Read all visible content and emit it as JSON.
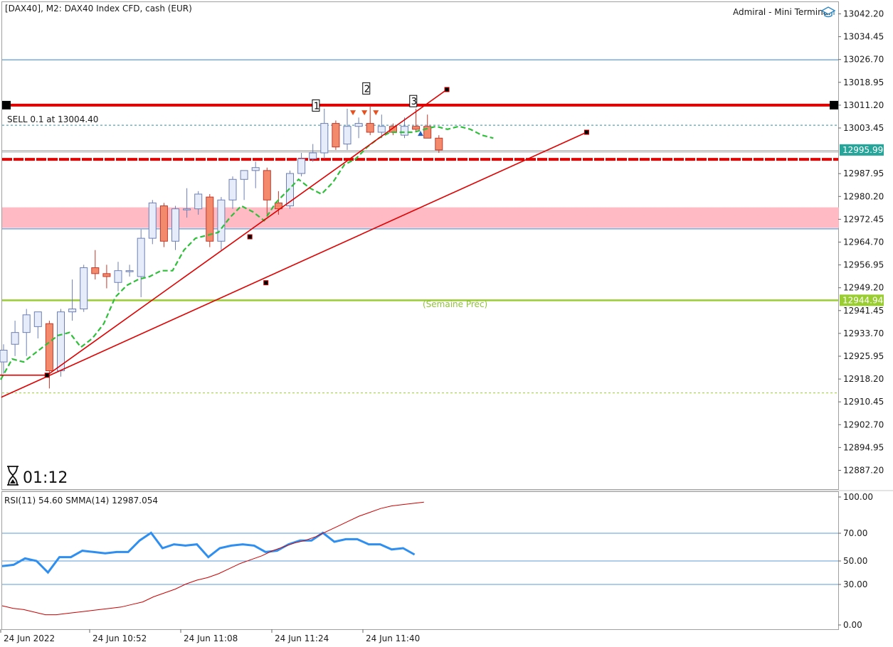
{
  "header": {
    "title": "[DAX40], M2:  DAX40 Index CFD, cash (EUR)",
    "brand": "Admiral - Mini Terminal",
    "brand_icon": "graduation-cap-icon"
  },
  "order_label": "SELL 0.1 at 13004.40",
  "timer": {
    "icon": "hourglass-icon",
    "value": "01:12"
  },
  "colors": {
    "bull_fill": "#e6ecfa",
    "bull_stroke": "#6d7fb3",
    "bear_fill": "#f48a6c",
    "bear_stroke": "#c0392b",
    "ma_green": "#2fbf3a",
    "trend_red": "#e00000",
    "rsi_blue": "#2e8ff0",
    "smma_red": "#cc0000",
    "weekly_green": "#9acd32",
    "price_tag": "#26a69a",
    "zone_pink": "#ffb6c1",
    "blue_line": "#5b9bd5"
  },
  "chart_data": [
    {
      "type": "candlestick",
      "symbol": "DAX40",
      "timeframe": "M2",
      "ylim": [
        12883.0,
        13046.0
      ],
      "y_ticks": [
        "13042.20",
        "13034.45",
        "13026.70",
        "13018.95",
        "13011.20",
        "13003.45",
        "12995.99",
        "12987.95",
        "12980.20",
        "12972.45",
        "12964.70",
        "12956.95",
        "12949.20",
        "12941.45",
        "12933.70",
        "12925.95",
        "12918.20",
        "12910.45",
        "12902.70",
        "12894.95",
        "12887.20"
      ],
      "x_ticks": [
        "24 Jun 2022",
        "24 Jun 10:52",
        "24 Jun 11:08",
        "24 Jun 11:24",
        "24 Jun 11:40"
      ],
      "current_price": "12995.99",
      "candles": [
        {
          "o": 12924.0,
          "h": 12930.0,
          "l": 12920.0,
          "c": 12928.0
        },
        {
          "o": 12930.0,
          "h": 12938.0,
          "l": 12926.0,
          "c": 12934.0
        },
        {
          "o": 12934.0,
          "h": 12942.0,
          "l": 12926.0,
          "c": 12940.0
        },
        {
          "o": 12936.0,
          "h": 12941.0,
          "l": 12932.0,
          "c": 12941.0
        },
        {
          "o": 12937.0,
          "h": 12938.0,
          "l": 12915.0,
          "c": 12921.0
        },
        {
          "o": 12921.0,
          "h": 12942.0,
          "l": 12919.0,
          "c": 12941.0
        },
        {
          "o": 12941.0,
          "h": 12952.0,
          "l": 12938.0,
          "c": 12942.0
        },
        {
          "o": 12942.0,
          "h": 12957.0,
          "l": 12941.0,
          "c": 12956.0
        },
        {
          "o": 12956.0,
          "h": 12962.0,
          "l": 12952.0,
          "c": 12954.0
        },
        {
          "o": 12954.0,
          "h": 12957.0,
          "l": 12949.0,
          "c": 12953.0
        },
        {
          "o": 12951.0,
          "h": 12958.0,
          "l": 12948.0,
          "c": 12955.0
        },
        {
          "o": 12955.0,
          "h": 12957.0,
          "l": 12953.0,
          "c": 12955.0
        },
        {
          "o": 12953.0,
          "h": 12969.0,
          "l": 12946.0,
          "c": 12966.0
        },
        {
          "o": 12966.0,
          "h": 12979.0,
          "l": 12964.0,
          "c": 12978.0
        },
        {
          "o": 12977.0,
          "h": 12978.0,
          "l": 12963.0,
          "c": 12965.0
        },
        {
          "o": 12965.0,
          "h": 12977.0,
          "l": 12962.0,
          "c": 12976.0
        },
        {
          "o": 12976.0,
          "h": 12983.0,
          "l": 12973.0,
          "c": 12976.0
        },
        {
          "o": 12976.0,
          "h": 12982.0,
          "l": 12974.0,
          "c": 12981.0
        },
        {
          "o": 12980.0,
          "h": 12981.0,
          "l": 12963.0,
          "c": 12965.0
        },
        {
          "o": 12965.0,
          "h": 12980.0,
          "l": 12962.0,
          "c": 12979.0
        },
        {
          "o": 12979.0,
          "h": 12987.0,
          "l": 12976.0,
          "c": 12986.0
        },
        {
          "o": 12986.0,
          "h": 12989.0,
          "l": 12979.0,
          "c": 12989.0
        },
        {
          "o": 12989.0,
          "h": 12992.0,
          "l": 12983.0,
          "c": 12990.0
        },
        {
          "o": 12989.0,
          "h": 12990.0,
          "l": 12974.0,
          "c": 12979.0
        },
        {
          "o": 12978.0,
          "h": 12982.0,
          "l": 12974.0,
          "c": 12976.0
        },
        {
          "o": 12977.0,
          "h": 12989.0,
          "l": 12976.0,
          "c": 12988.0
        },
        {
          "o": 12988.0,
          "h": 12995.0,
          "l": 12987.0,
          "c": 12993.0
        },
        {
          "o": 12993.0,
          "h": 12998.0,
          "l": 12992.0,
          "c": 12995.0
        },
        {
          "o": 12995.0,
          "h": 13010.0,
          "l": 12993.0,
          "c": 13005.0
        },
        {
          "o": 13005.0,
          "h": 13006.0,
          "l": 12996.0,
          "c": 12997.0
        },
        {
          "o": 12998.0,
          "h": 13010.0,
          "l": 12996.0,
          "c": 13004.0
        },
        {
          "o": 13004.0,
          "h": 13007.0,
          "l": 13000.0,
          "c": 13005.0
        },
        {
          "o": 13005.0,
          "h": 13011.0,
          "l": 13001.0,
          "c": 13002.0
        },
        {
          "o": 13002.0,
          "h": 13008.0,
          "l": 13000.0,
          "c": 13004.0
        },
        {
          "o": 13004.0,
          "h": 13005.0,
          "l": 13001.0,
          "c": 13002.0
        },
        {
          "o": 13001.0,
          "h": 13007.0,
          "l": 13000.0,
          "c": 13004.0
        },
        {
          "o": 13004.0,
          "h": 13010.0,
          "l": 13002.0,
          "c": 13003.0
        },
        {
          "o": 13004.0,
          "h": 13008.0,
          "l": 13000.0,
          "c": 13000.0
        },
        {
          "o": 13000.0,
          "h": 13001.0,
          "l": 12995.0,
          "c": 12996.0
        }
      ],
      "ma_values": [
        12918,
        12925,
        12924,
        12927,
        12930,
        12933,
        12934,
        12929,
        12932,
        12937,
        12946,
        12950,
        12952,
        12953,
        12955,
        12955,
        12962,
        12966,
        12967,
        12968,
        12973,
        12977,
        12975,
        12972,
        12978,
        12982,
        12986,
        12983,
        12981,
        12985,
        12991,
        12993,
        12997,
        13000,
        13002,
        13002,
        13002,
        13003,
        13004,
        13003,
        13004,
        13003,
        13001,
        13000
      ],
      "horizontal_lines": [
        {
          "price": 13026.6,
          "style": "solid",
          "color": "#5b9bd5"
        },
        {
          "price": 13011.2,
          "style": "thick",
          "color": "#e00000"
        },
        {
          "price": 13004.4,
          "style": "dotted",
          "color": "#2f8fa0"
        },
        {
          "price": 12992.8,
          "style": "thick-dashed",
          "color": "#e00000"
        },
        {
          "price": 12969.2,
          "style": "solid",
          "color": "#5b9bd5"
        },
        {
          "price": 12944.94,
          "style": "solid",
          "color": "#9acd32",
          "label": "12944.94",
          "caption": "(Semaine Préc)"
        },
        {
          "price": 12913.5,
          "style": "dotted",
          "color": "#9acd32"
        }
      ],
      "zone": {
        "from": 12969.5,
        "to": 12976.5
      },
      "trend_lines": [
        {
          "x1": -0.5,
          "y1": 12919.5,
          "x2": 3.8,
          "y2": 12919.5,
          "x3": 38.7,
          "y3": 13016.5
        },
        {
          "x1": -0.2,
          "y1": 12912.0,
          "x2": 50.9,
          "y2": 13002.0
        }
      ],
      "wave_labels": [
        "1",
        "2",
        "3"
      ]
    },
    {
      "type": "line",
      "indicator": "RSI(11) 54.60 SMMA(14) 12987.054",
      "ylim": [
        0,
        100
      ],
      "y_ticks": [
        "100.00",
        "70.00",
        "50.00",
        "30.00",
        "0.00"
      ],
      "levels": [
        70,
        50,
        30
      ],
      "series": [
        {
          "values": [
            46,
            47,
            52,
            50,
            41,
            53,
            53,
            58,
            57,
            56,
            57,
            57,
            66,
            72,
            60,
            63,
            62,
            63,
            53,
            60,
            62,
            63,
            62,
            57,
            58,
            63,
            66,
            66,
            72,
            65,
            67,
            67,
            63,
            63,
            59,
            60,
            55
          ]
        },
        {
          "values": [
            15,
            13,
            12,
            10,
            8,
            8,
            9,
            10,
            11,
            12,
            13,
            14,
            16,
            18,
            22,
            25,
            28,
            32,
            35,
            37,
            40,
            44,
            48,
            51,
            54,
            58,
            61,
            64,
            66,
            69,
            73,
            77,
            81,
            85,
            88,
            91,
            93,
            94,
            95,
            96
          ]
        }
      ]
    }
  ]
}
